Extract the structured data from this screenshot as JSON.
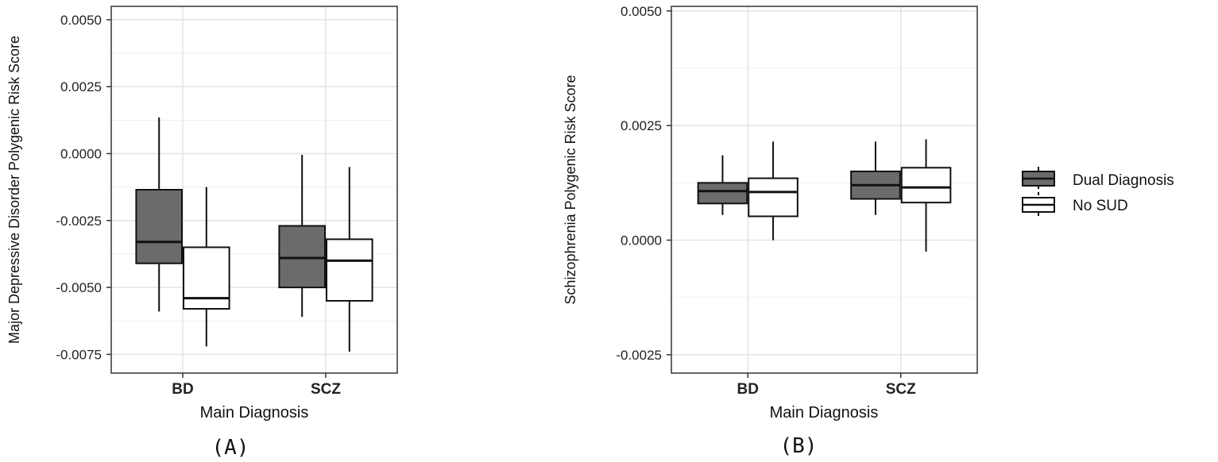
{
  "chart_data": [
    {
      "type": "boxplot",
      "panel_label": "(A)",
      "xlabel": "Main Diagnosis",
      "ylabel": "Major Depressive Disorder Polygenic Risk Score",
      "categories": [
        "BD",
        "SCZ"
      ],
      "ylim": [
        -0.0082,
        0.0055
      ],
      "yticks": [
        0.005,
        0.0025,
        0.0,
        -0.0025,
        -0.005,
        -0.0075
      ],
      "ytick_labels": [
        "0.0050",
        "0.0025",
        "0.0000",
        "-0.0025",
        "-0.0050",
        "-0.0075"
      ],
      "grid": true,
      "series": [
        {
          "name": "Dual Diagnosis",
          "color": "#6b6b6b",
          "boxes": [
            {
              "category": "BD",
              "min": -0.0059,
              "q1": -0.0041,
              "median": -0.0033,
              "q3": -0.00135,
              "max": 0.00135
            },
            {
              "category": "SCZ",
              "min": -0.0061,
              "q1": -0.005,
              "median": -0.0039,
              "q3": -0.0027,
              "max": -5e-05
            }
          ]
        },
        {
          "name": "No SUD",
          "color": "#ffffff",
          "boxes": [
            {
              "category": "BD",
              "min": -0.0072,
              "q1": -0.0058,
              "median": -0.0054,
              "q3": -0.0035,
              "max": -0.00125
            },
            {
              "category": "SCZ",
              "min": -0.0074,
              "q1": -0.0055,
              "median": -0.004,
              "q3": -0.0032,
              "max": -0.0005
            }
          ]
        }
      ]
    },
    {
      "type": "boxplot",
      "panel_label": "(B)",
      "xlabel": "Main Diagnosis",
      "ylabel": "Schizophrenia Polygenic Risk Score",
      "categories": [
        "BD",
        "SCZ"
      ],
      "ylim": [
        -0.0029,
        0.0051
      ],
      "yticks": [
        0.005,
        0.0025,
        0.0,
        -0.0025
      ],
      "ytick_labels": [
        "0.0050",
        "0.0025",
        "0.0000",
        "-0.0025"
      ],
      "grid": true,
      "series": [
        {
          "name": "Dual Diagnosis",
          "color": "#6b6b6b",
          "boxes": [
            {
              "category": "BD",
              "min": 0.00055,
              "q1": 0.0008,
              "median": 0.00107,
              "q3": 0.00125,
              "max": 0.00185
            },
            {
              "category": "SCZ",
              "min": 0.00055,
              "q1": 0.0009,
              "median": 0.0012,
              "q3": 0.0015,
              "max": 0.00215
            }
          ]
        },
        {
          "name": "No SUD",
          "color": "#ffffff",
          "boxes": [
            {
              "category": "BD",
              "min": 0.0,
              "q1": 0.00052,
              "median": 0.00105,
              "q3": 0.00135,
              "max": 0.00215
            },
            {
              "category": "SCZ",
              "min": -0.00025,
              "q1": 0.00082,
              "median": 0.00115,
              "q3": 0.00158,
              "max": 0.0022
            }
          ]
        }
      ]
    }
  ],
  "legend": {
    "placement": "right",
    "entries": [
      {
        "label": "Dual Diagnosis",
        "color": "#6b6b6b"
      },
      {
        "label": "No SUD",
        "color": "#ffffff"
      }
    ]
  }
}
